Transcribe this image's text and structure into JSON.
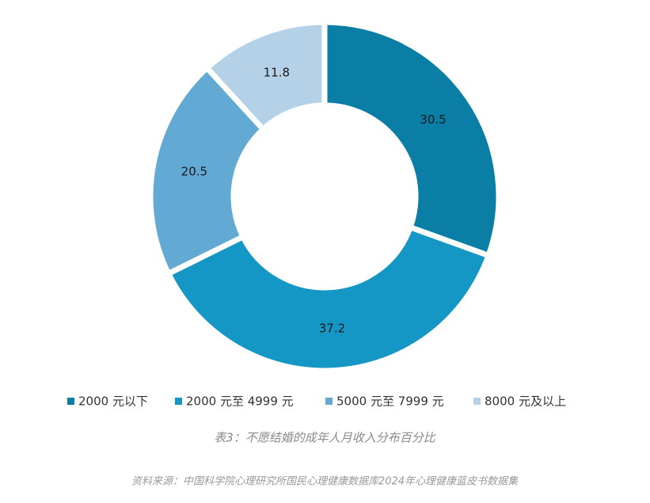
{
  "chart_data": {
    "type": "donut",
    "categories": [
      "2000 元以下",
      "2000 元至 4999 元",
      "5000 元至 7999 元",
      "8000 元及以上"
    ],
    "values": [
      30.5,
      37.2,
      20.5,
      11.8
    ],
    "colors": [
      "#0b7ea5",
      "#1597c5",
      "#62a9d4",
      "#b5d1e8"
    ],
    "caption": "表3：不愿结婚的成年人月收入分布百分比",
    "source": "资料来源：中国科学院心理研究所国民心理健康数据库2024年心理健康蓝皮书数据集"
  }
}
